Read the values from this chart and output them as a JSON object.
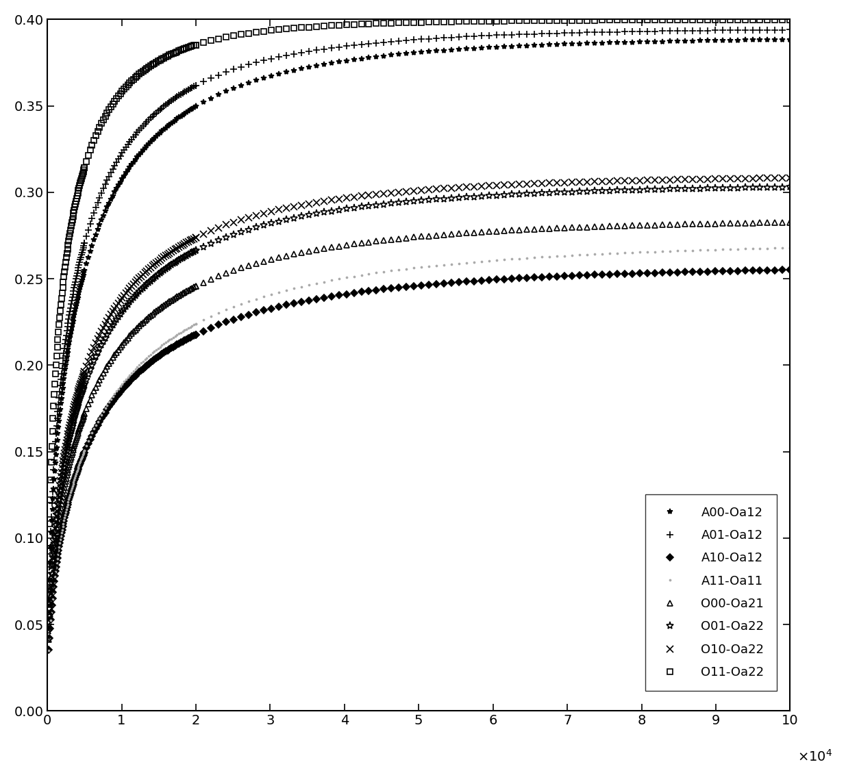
{
  "xlim": [
    0,
    100000
  ],
  "ylim": [
    0,
    0.4
  ],
  "background_color": "#ffffff",
  "tick_fontsize": 14,
  "legend_fontsize": 13,
  "series": [
    {
      "label": "A00-Oa12",
      "marker": "*",
      "ms": 6,
      "mfc": "black",
      "mec": "black",
      "A": 0.39,
      "k": 5.5e-05,
      "n": 0.55
    },
    {
      "label": "A01-Oa12",
      "marker": "+",
      "ms": 7,
      "mfc": "black",
      "mec": "black",
      "A": 0.395,
      "k": 6e-05,
      "n": 0.55
    },
    {
      "label": "A10-Oa12",
      "marker": "D",
      "ms": 5,
      "mfc": "black",
      "mec": "black",
      "A": 0.258,
      "k": 4.5e-05,
      "n": 0.55
    },
    {
      "label": "A11-Oa11",
      "marker": ".",
      "ms": 3,
      "mfc": "#aaaaaa",
      "mec": "#aaaaaa",
      "A": 0.272,
      "k": 4.2e-05,
      "n": 0.55
    },
    {
      "label": "O00-Oa21",
      "marker": "^",
      "ms": 6,
      "mfc": "none",
      "mec": "black",
      "A": 0.285,
      "k": 4.8e-05,
      "n": 0.55
    },
    {
      "label": "O01-Oa22",
      "marker": "*",
      "ms": 8,
      "mfc": "none",
      "mec": "black",
      "A": 0.305,
      "k": 5e-05,
      "n": 0.55
    },
    {
      "label": "O10-Oa22",
      "marker": "x",
      "ms": 7,
      "mfc": "black",
      "mec": "black",
      "A": 0.31,
      "k": 5.2e-05,
      "n": 0.55
    },
    {
      "label": "O11-Oa22",
      "marker": "s",
      "ms": 6,
      "mfc": "none",
      "mec": "black",
      "A": 0.4,
      "k": 8e-05,
      "n": 0.55
    }
  ]
}
